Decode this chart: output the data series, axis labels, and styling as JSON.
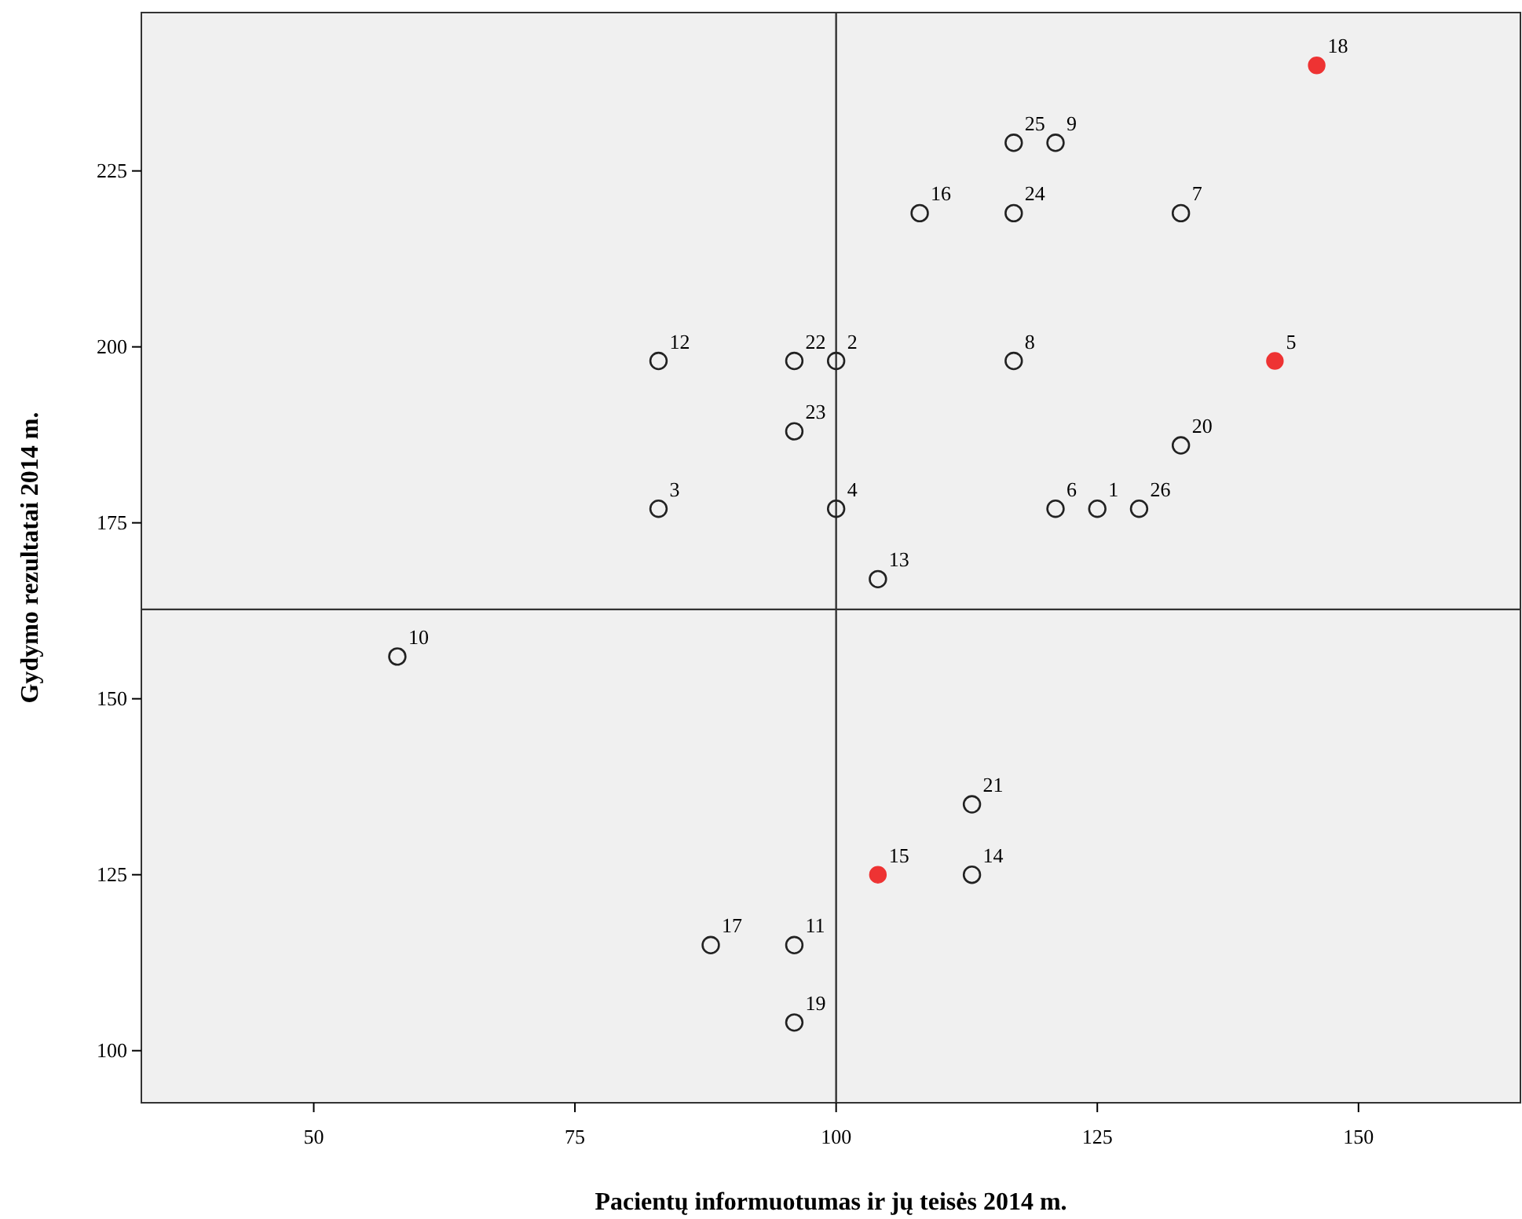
{
  "chart_data": {
    "type": "scatter",
    "xlabel": "Pacientų informuotumas ir jų teisės 2014 m.",
    "ylabel": "Gydymo rezultatai 2014 m.",
    "xlim": [
      33.5,
      165.5
    ],
    "xticks": [
      50,
      75,
      100,
      125,
      150
    ],
    "ylim": [
      92.6,
      247.5
    ],
    "yticks": [
      100,
      125,
      150,
      175,
      200,
      225
    ],
    "grid": false,
    "marker": "circle",
    "ref_lines": [
      {
        "axis": "x",
        "value": 100,
        "color": "#333333"
      },
      {
        "axis": "y",
        "value": 162.7,
        "color": "#333333"
      }
    ],
    "series": [
      {
        "color": "#222222",
        "x": [
          125,
          100,
          83,
          100,
          121,
          133,
          117,
          121,
          58,
          96,
          83,
          104,
          113,
          108,
          88,
          96,
          133,
          113,
          96,
          96,
          117,
          117,
          129
        ],
        "values": [
          177,
          198,
          177,
          177,
          177,
          219,
          198,
          229,
          156,
          115,
          198,
          167,
          125,
          219,
          115,
          104,
          186,
          135,
          198,
          188,
          219,
          229,
          177
        ]
      },
      {
        "color": "#ee3333",
        "x": [
          142,
          104,
          146
        ],
        "values": [
          198,
          125,
          240
        ]
      }
    ],
    "annotations": [
      {
        "text": "1",
        "x": 125,
        "y": 177
      },
      {
        "text": "2",
        "x": 100,
        "y": 198
      },
      {
        "text": "3",
        "x": 83,
        "y": 177
      },
      {
        "text": "4",
        "x": 100,
        "y": 177
      },
      {
        "text": "5",
        "x": 142,
        "y": 198
      },
      {
        "text": "6",
        "x": 121,
        "y": 177
      },
      {
        "text": "7",
        "x": 133,
        "y": 219
      },
      {
        "text": "8",
        "x": 117,
        "y": 198
      },
      {
        "text": "9",
        "x": 121,
        "y": 229
      },
      {
        "text": "10",
        "x": 58,
        "y": 156
      },
      {
        "text": "11",
        "x": 96,
        "y": 115
      },
      {
        "text": "12",
        "x": 83,
        "y": 198
      },
      {
        "text": "13",
        "x": 104,
        "y": 167
      },
      {
        "text": "14",
        "x": 113,
        "y": 125
      },
      {
        "text": "15",
        "x": 104,
        "y": 125
      },
      {
        "text": "16",
        "x": 108,
        "y": 219
      },
      {
        "text": "17",
        "x": 88,
        "y": 115
      },
      {
        "text": "18",
        "x": 146,
        "y": 240
      },
      {
        "text": "19",
        "x": 96,
        "y": 104
      },
      {
        "text": "20",
        "x": 133,
        "y": 186
      },
      {
        "text": "21",
        "x": 113,
        "y": 135
      },
      {
        "text": "22",
        "x": 96,
        "y": 198
      },
      {
        "text": "23",
        "x": 96,
        "y": 188
      },
      {
        "text": "24",
        "x": 117,
        "y": 219
      },
      {
        "text": "25",
        "x": 117,
        "y": 229
      },
      {
        "text": "26",
        "x": 129,
        "y": 177
      }
    ]
  }
}
